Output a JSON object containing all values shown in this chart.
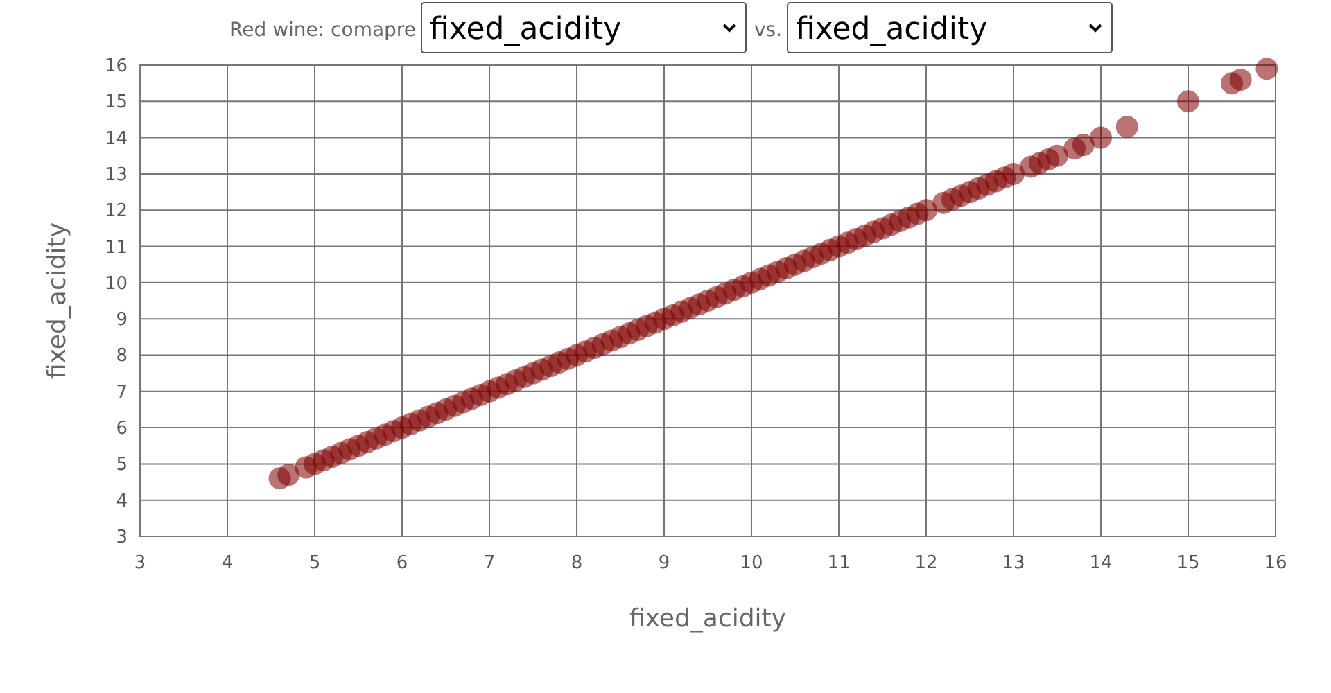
{
  "chart_data": {
    "type": "scatter",
    "title": "Red wine: comapre",
    "annotations": [
      "fixed_acidity",
      "vs.",
      "fixed_acidity"
    ],
    "xlabel": "fixed_acidity",
    "ylabel": "fixed_acidity",
    "xlim": [
      3,
      16
    ],
    "ylim": [
      3,
      16
    ],
    "xticks": [
      3,
      4,
      5,
      6,
      7,
      8,
      9,
      10,
      11,
      12,
      13,
      14,
      15,
      16
    ],
    "yticks": [
      3,
      4,
      5,
      6,
      7,
      8,
      9,
      10,
      11,
      12,
      13,
      14,
      15,
      16
    ],
    "grid": true,
    "marker": "circle",
    "x": [
      4.6,
      4.7,
      4.9,
      5.0,
      5.1,
      5.2,
      5.3,
      5.4,
      5.5,
      5.6,
      5.7,
      5.8,
      5.9,
      6.0,
      6.1,
      6.2,
      6.3,
      6.4,
      6.5,
      6.6,
      6.7,
      6.8,
      6.9,
      7.0,
      7.1,
      7.2,
      7.3,
      7.4,
      7.5,
      7.6,
      7.7,
      7.8,
      7.9,
      8.0,
      8.1,
      8.2,
      8.3,
      8.4,
      8.5,
      8.6,
      8.7,
      8.8,
      8.9,
      9.0,
      9.1,
      9.2,
      9.3,
      9.4,
      9.5,
      9.6,
      9.7,
      9.8,
      9.9,
      10.0,
      10.1,
      10.2,
      10.3,
      10.4,
      10.5,
      10.6,
      10.7,
      10.8,
      10.9,
      11.0,
      11.1,
      11.2,
      11.3,
      11.4,
      11.5,
      11.6,
      11.7,
      11.8,
      11.9,
      12.0,
      12.2,
      12.3,
      12.4,
      12.5,
      12.6,
      12.7,
      12.8,
      12.9,
      13.0,
      13.2,
      13.3,
      13.4,
      13.5,
      13.7,
      13.8,
      14.0,
      14.3,
      15.0,
      15.5,
      15.6,
      15.9
    ],
    "series": [
      {
        "color": "#800000",
        "values": [
          4.6,
          4.7,
          4.9,
          5.0,
          5.1,
          5.2,
          5.3,
          5.4,
          5.5,
          5.6,
          5.7,
          5.8,
          5.9,
          6.0,
          6.1,
          6.2,
          6.3,
          6.4,
          6.5,
          6.6,
          6.7,
          6.8,
          6.9,
          7.0,
          7.1,
          7.2,
          7.3,
          7.4,
          7.5,
          7.6,
          7.7,
          7.8,
          7.9,
          8.0,
          8.1,
          8.2,
          8.3,
          8.4,
          8.5,
          8.6,
          8.7,
          8.8,
          8.9,
          9.0,
          9.1,
          9.2,
          9.3,
          9.4,
          9.5,
          9.6,
          9.7,
          9.8,
          9.9,
          10.0,
          10.1,
          10.2,
          10.3,
          10.4,
          10.5,
          10.6,
          10.7,
          10.8,
          10.9,
          11.0,
          11.1,
          11.2,
          11.3,
          11.4,
          11.5,
          11.6,
          11.7,
          11.8,
          11.9,
          12.0,
          12.2,
          12.3,
          12.4,
          12.5,
          12.6,
          12.7,
          12.8,
          12.9,
          13.0,
          13.2,
          13.3,
          13.4,
          13.5,
          13.7,
          13.8,
          14.0,
          14.3,
          15.0,
          15.5,
          15.6,
          15.9
        ]
      }
    ]
  }
}
